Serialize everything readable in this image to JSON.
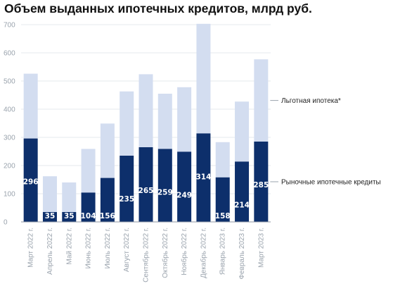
{
  "chart_data": {
    "type": "bar",
    "stacked": true,
    "title": "Объем выданных ипотечных кредитов, млрд руб.",
    "categories": [
      "Март 2022 г.",
      "Апрель 2022 г.",
      "Май 2022 г.",
      "Июнь 2022 г.",
      "Июль 2022 г.",
      "Август 2022 г.",
      "Сентябрь 2022 г.",
      "Октябрь 2022 г.",
      "Ноябрь 2022 г.",
      "Декабрь 2022 г.",
      "Январь 2023 г.",
      "Февраль 2023 г.",
      "Март 2023 г."
    ],
    "series": [
      {
        "name": "Рыночные ипотечные кредиты",
        "color": "#0d2f6b",
        "values": [
          296,
          35,
          35,
          104,
          156,
          235,
          265,
          259,
          249,
          314,
          158,
          214,
          285
        ]
      },
      {
        "name": "Льготная ипотека*",
        "color": "#d3ddf0",
        "values": [
          230,
          127,
          105,
          155,
          193,
          228,
          259,
          196,
          229,
          389,
          125,
          213,
          292
        ]
      }
    ],
    "ylim": [
      0,
      700
    ],
    "yticks": [
      "0",
      "100",
      "200",
      "300",
      "400",
      "500",
      "600",
      "700"
    ],
    "grid": true,
    "legend": "right",
    "xlabel": "",
    "ylabel": ""
  }
}
